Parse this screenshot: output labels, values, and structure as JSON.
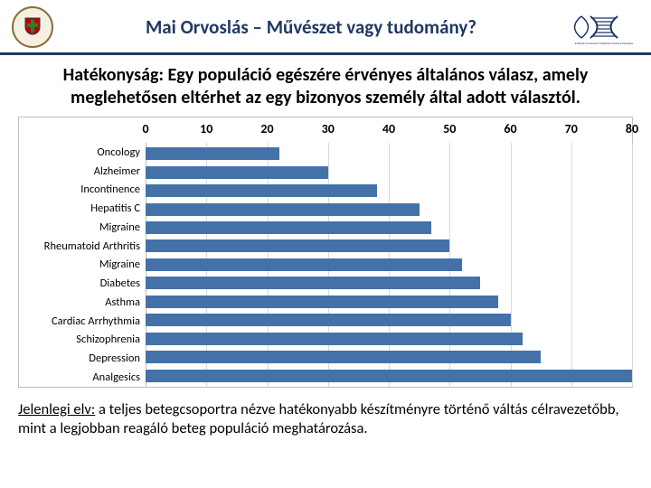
{
  "header": {
    "title": "Mai Orvoslás – Művészet vagy tudomány?"
  },
  "subtitle": "Hatékonyság: Egy populáció egészére érvényes általános válasz, amely meglehetősen eltérhet az egy bizonyos személy által adott választól.",
  "chart": {
    "type": "bar-horizontal",
    "xmin": 0,
    "xmax": 80,
    "tick_step": 10,
    "ticks": [
      "0",
      "10",
      "20",
      "30",
      "40",
      "50",
      "60",
      "70",
      "80"
    ],
    "bar_color": "#4472a8",
    "grid_color": "#d9d9d9",
    "border_color": "#bfbfbf",
    "background": "#ffffff",
    "tick_fontsize": 14,
    "label_fontsize": 12.5,
    "categories": [
      "Oncology",
      "Alzheimer",
      "Incontinence",
      "Hepatitis C",
      "Migraine",
      "Rheumatoid Arthritis",
      "Migraine",
      "Diabetes",
      "Asthma",
      "Cardiac Arrhythmia",
      "Schizophrenia",
      "Depression",
      "Analgesics"
    ],
    "values": [
      22,
      30,
      38,
      45,
      47,
      50,
      52,
      55,
      58,
      60,
      62,
      65,
      80
    ]
  },
  "footer": {
    "lead": "Jelenlegi elv:",
    "rest": " a teljes betegcsoportra nézve hatékonyabb készítményre történő váltás célravezetőbb, mint a legjobban reagáló beteg populáció meghatározása."
  },
  "colors": {
    "header_rule": "#1f3864",
    "title_color": "#1f3864"
  }
}
